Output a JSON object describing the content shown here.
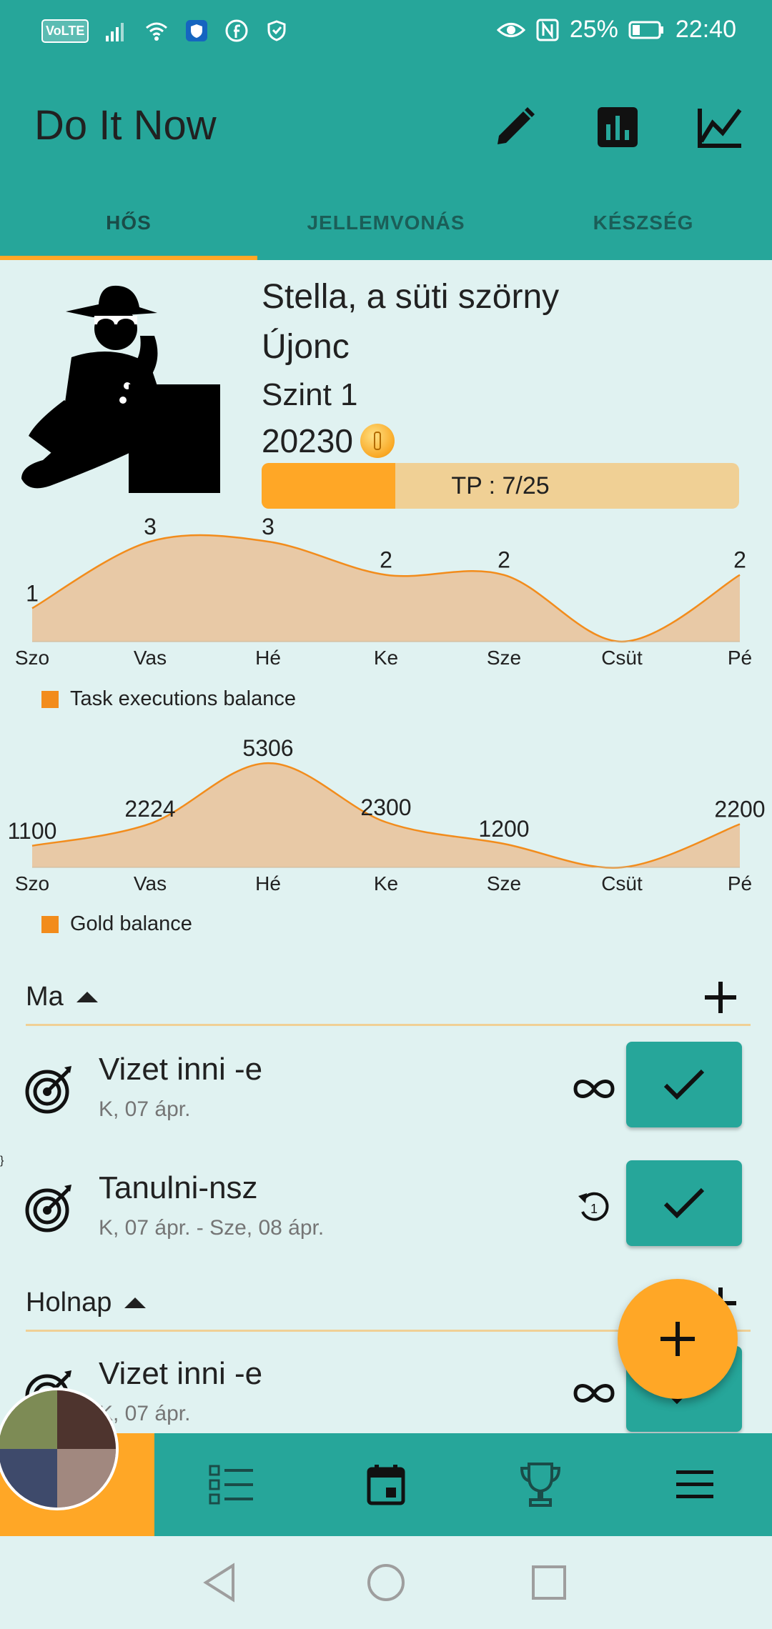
{
  "status_bar": {
    "volte": "VoLTE",
    "battery": "25%",
    "time": "22:40"
  },
  "app_bar": {
    "title": "Do It Now",
    "icons": [
      "edit-icon",
      "bar-chart-icon",
      "line-chart-icon"
    ]
  },
  "tabs": [
    {
      "label": "HŐS",
      "active": true
    },
    {
      "label": "JELLEMVONÁS",
      "active": false
    },
    {
      "label": "KÉSZSÉG",
      "active": false
    }
  ],
  "hero": {
    "name": "Stella, a süti szörny",
    "rank": "Újonc",
    "level": "Szint 1",
    "gold": "20230",
    "tp_label": "TP : 7/25",
    "tp_current": 7,
    "tp_max": 25,
    "colors": {
      "primary": "#26a69a",
      "accent": "#ffa726",
      "chart_fill": "#e8c9a6",
      "chart_line": "#f28c1c"
    }
  },
  "chart_data": [
    {
      "type": "area",
      "categories": [
        "Szo",
        "Vas",
        "Hé",
        "Ke",
        "Sze",
        "Csüt",
        "Pé"
      ],
      "series": [
        {
          "name": "Task executions balance",
          "values": [
            1,
            3,
            3,
            2,
            2,
            0,
            2
          ]
        }
      ],
      "data_labels": [
        "1",
        "3",
        "3",
        "2",
        "2",
        "",
        "2"
      ],
      "ylim": [
        0,
        3.3
      ],
      "legend": "bottom-left",
      "grid": false
    },
    {
      "type": "area",
      "categories": [
        "Szo",
        "Vas",
        "Hé",
        "Ke",
        "Sze",
        "Csüt",
        "Pé"
      ],
      "series": [
        {
          "name": "Gold balance",
          "values": [
            1100,
            2224,
            5306,
            2300,
            1200,
            0,
            2200
          ]
        }
      ],
      "data_labels": [
        "1100",
        "2224",
        "5306",
        "2300",
        "1200",
        "",
        "2200"
      ],
      "ylim": [
        0,
        5600
      ],
      "legend": "bottom-left",
      "grid": false
    }
  ],
  "sections": [
    {
      "label": "Ma",
      "tasks": [
        {
          "title": "Vizet inni -e",
          "date": "K, 07 ápr.",
          "repeat_icon": "infinity-icon"
        },
        {
          "title": "Tanulni-nsz",
          "date": "K, 07 ápr. - Sze, 08 ápr.",
          "repeat_icon": "repeat-once-icon",
          "repeat_count": "1"
        }
      ]
    },
    {
      "label": "Holnap",
      "tasks": [
        {
          "title": "Vizet inni -e",
          "date": "K, 07 ápr.",
          "repeat_icon": "infinity-icon"
        }
      ]
    }
  ],
  "bottom_nav": [
    "avatar",
    "list-icon",
    "calendar-icon",
    "trophy-icon",
    "menu-icon"
  ]
}
